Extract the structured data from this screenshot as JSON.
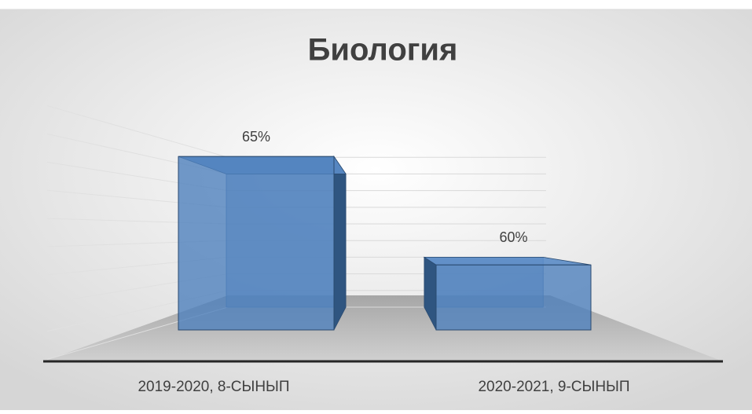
{
  "chart_data": {
    "type": "bar3d",
    "title": "Биология",
    "categories": [
      "2019-2020, 8-СЫНЫП",
      "2020-2021, 9-СЫНЫП"
    ],
    "values": [
      65,
      60
    ],
    "value_labels": [
      "65%",
      "60%"
    ],
    "color": "#4f81bd",
    "ylim": [
      57,
      66
    ],
    "yticks": [
      57,
      58,
      59,
      60,
      61,
      62,
      63,
      64,
      65,
      66
    ],
    "grid": true
  }
}
